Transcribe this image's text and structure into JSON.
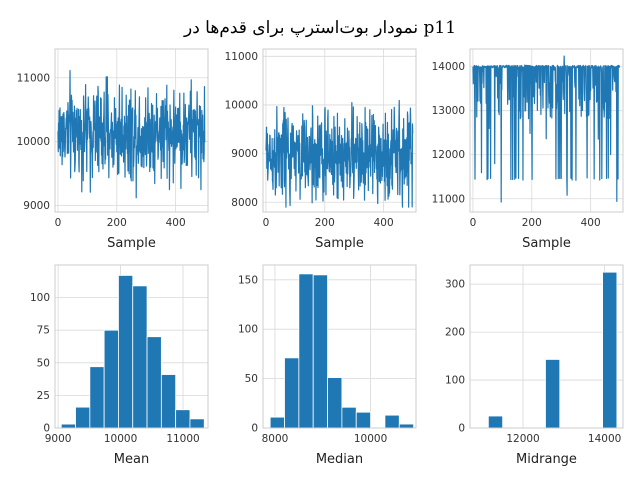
{
  "figure": {
    "title": "نمودار بوت‌استرپ برای قدم‌ها در p11",
    "bar_color": "#1f77b4"
  },
  "chart_data": [
    {
      "type": "line",
      "xlabel": "Sample",
      "ylabel": "",
      "xlim": [
        -10,
        510
      ],
      "ylim": [
        8900,
        11450
      ],
      "xticks": [
        0,
        200,
        400
      ],
      "yticks": [
        9000,
        10000,
        11000
      ],
      "grid": true,
      "series": [
        {
          "n": 500,
          "range": [
            9050,
            11350
          ],
          "center": 10150
        }
      ]
    },
    {
      "type": "line",
      "xlabel": "Sample",
      "ylabel": "",
      "xlim": [
        -10,
        510
      ],
      "ylim": [
        7800,
        11150
      ],
      "xticks": [
        0,
        200,
        400
      ],
      "yticks": [
        8000,
        9000,
        10000,
        11000
      ],
      "grid": true,
      "series": [
        {
          "n": 500,
          "range": [
            7900,
            10900
          ],
          "center": 8950
        }
      ]
    },
    {
      "type": "line",
      "xlabel": "Sample",
      "ylabel": "",
      "xlim": [
        -10,
        510
      ],
      "ylim": [
        10700,
        14400
      ],
      "xticks": [
        0,
        200,
        400
      ],
      "yticks": [
        11000,
        12000,
        13000,
        14000
      ],
      "grid": true,
      "series": [
        {
          "n": 500,
          "range": [
            10800,
            14300
          ],
          "center": 13700
        }
      ]
    },
    {
      "type": "bar",
      "xlabel": "Mean",
      "ylabel": "",
      "xlim": [
        8950,
        11400
      ],
      "ylim": [
        0,
        125
      ],
      "xticks": [
        9000,
        10000,
        11000
      ],
      "yticks": [
        0,
        25,
        50,
        75,
        100
      ],
      "grid": true,
      "bin_edges": [
        9050,
        9279,
        9508,
        9737,
        9966,
        10195,
        10424,
        10653,
        10882,
        11111,
        11340
      ],
      "values": [
        3,
        16,
        47,
        75,
        117,
        109,
        70,
        41,
        14,
        7
      ]
    },
    {
      "type": "bar",
      "xlabel": "Median",
      "ylabel": "",
      "xlim": [
        7750,
        10950
      ],
      "ylim": [
        0,
        165
      ],
      "xticks": [
        8000,
        10000
      ],
      "yticks": [
        0,
        50,
        100,
        150
      ],
      "grid": true,
      "bin_edges": [
        7900,
        8200,
        8500,
        8800,
        9100,
        9400,
        9700,
        10000,
        10300,
        10600,
        10900
      ],
      "values": [
        11,
        71,
        156,
        155,
        51,
        21,
        16,
        0,
        13,
        4
      ]
    },
    {
      "type": "bar",
      "xlabel": "Midrange",
      "ylabel": "",
      "xlim": [
        10700,
        14450
      ],
      "ylim": [
        0,
        340
      ],
      "xticks": [
        12000,
        14000
      ],
      "yticks": [
        0,
        100,
        200,
        300
      ],
      "grid": true,
      "bin_edges": [
        10800,
        11150,
        11500,
        11850,
        12200,
        12550,
        12900,
        13250,
        13600,
        13950,
        14300
      ],
      "values": [
        0,
        25,
        0,
        0,
        0,
        143,
        0,
        0,
        0,
        325
      ]
    }
  ]
}
